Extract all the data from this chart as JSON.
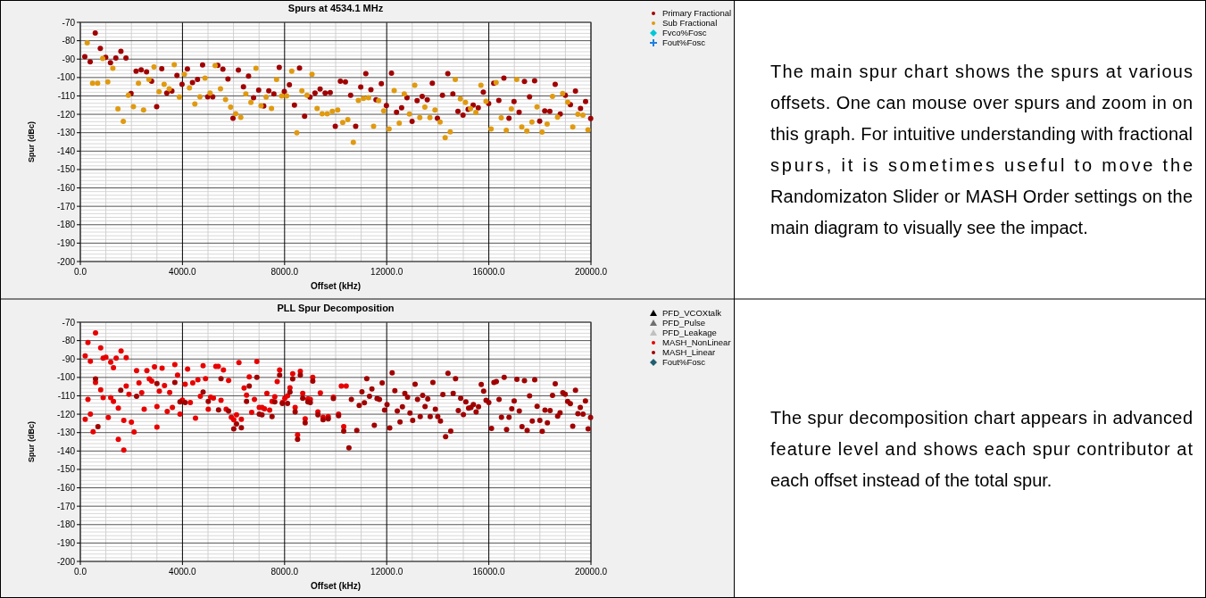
{
  "chart_data": [
    {
      "type": "scatter",
      "title": "Spurs at 4534.1 MHz",
      "xlabel": "Offset (kHz)",
      "ylabel": "Spur (dBc)",
      "xlim": [
        0,
        20000
      ],
      "ylim": [
        -200,
        -70
      ],
      "xticks": [
        {
          "value": 0,
          "label": "0.0"
        },
        {
          "value": 4000,
          "label": "4000.0"
        },
        {
          "value": 8000,
          "label": "8000.0"
        },
        {
          "value": 12000,
          "label": "12000.0"
        },
        {
          "value": 16000,
          "label": "16000.0"
        },
        {
          "value": 20000,
          "label": "20000.0"
        }
      ],
      "yticks": [
        -70,
        -80,
        -90,
        -100,
        -110,
        -120,
        -130,
        -140,
        -150,
        -160,
        -170,
        -180,
        -190,
        -200
      ],
      "grid": true,
      "legend": "right",
      "series": [
        {
          "name": "Primary Fractional",
          "color": "#a00000",
          "marker": "circle",
          "x": [
            175,
            385,
            584,
            783,
            993,
            1180,
            1390,
            1589,
            1787,
            1986,
            2184,
            2383,
            2593,
            2792,
            2990,
            3189,
            3387,
            3586,
            3784,
            3983,
            4193,
            4392,
            4590,
            4789,
            4988,
            5186,
            5385,
            5583,
            5782,
            5980,
            6190,
            6389,
            6588,
            6786,
            6985,
            7183,
            7382,
            7581,
            7791,
            7989,
            8188,
            8386,
            8585,
            8784,
            8994,
            9192,
            9391,
            9589,
            9788,
            9986,
            10185,
            10383,
            10587,
            10785,
            10984,
            11182,
            11381,
            11580,
            11790,
            11988,
            12187,
            12385,
            12584,
            12794,
            12993,
            13191,
            13390,
            13589,
            13787,
            13986,
            14184,
            14394,
            14593,
            14791,
            14990,
            15189,
            15387,
            15586,
            15784,
            15994,
            16193,
            16392,
            16590,
            16789,
            16987,
            17186,
            17396,
            17595,
            17793,
            17992,
            18190,
            18389,
            18599,
            18797,
            18996,
            19195,
            19393,
            19592,
            19790,
            19989
          ],
          "values": [
            -88.7,
            -91.5,
            -75.8,
            -84.2,
            -89,
            -92,
            -89.4,
            -85.8,
            -89.4,
            -108.7,
            -96.6,
            -95.8,
            -96.9,
            -102,
            -115.8,
            -95.2,
            -108.4,
            -107.4,
            -98.9,
            -103.7,
            -95.3,
            -102.7,
            -101,
            -93.2,
            -110.5,
            -110.5,
            -93.4,
            -95.5,
            -100.8,
            -122.1,
            -96,
            -105,
            -99.2,
            -111,
            -106.9,
            -115.5,
            -107.2,
            -108.9,
            -94.5,
            -107.6,
            -104,
            -115,
            -94.8,
            -121,
            -110.6,
            -108.5,
            -106.3,
            -108.4,
            -108.2,
            -126.5,
            -102,
            -102.4,
            -109.7,
            -126.5,
            -105.2,
            -97.9,
            -106.6,
            -112.1,
            -103.4,
            -115.2,
            -97.6,
            -118.9,
            -116.5,
            -111,
            -123.9,
            -112.6,
            -110.3,
            -112.1,
            -103.1,
            -122.1,
            -109.7,
            -97.9,
            -108.9,
            -118.4,
            -120.5,
            -117.3,
            -115,
            -116.5,
            -107.9,
            -114.2,
            -103.1,
            -112.4,
            -100.3,
            -122.1,
            -113.1,
            -118.9,
            -102.1,
            -110.5,
            -101.8,
            -123.7,
            -118.1,
            -118.4,
            -103.7,
            -119.8,
            -109.7,
            -114.8,
            -107.4,
            -116.8,
            -113.1,
            -122.3
          ]
        },
        {
          "name": "Sub Fractional",
          "color": "#e09a10",
          "marker": "circle",
          "x": [
            269,
            479,
            677,
            876,
            1075,
            1273,
            1472,
            1682,
            1880,
            2079,
            2277,
            2476,
            2686,
            2885,
            3083,
            3282,
            3481,
            3679,
            3878,
            4076,
            4275,
            4485,
            4684,
            4882,
            5081,
            5280,
            5490,
            5688,
            5887,
            6085,
            6284,
            6482,
            6681,
            6880,
            7078,
            7277,
            7487,
            7685,
            7884,
            8082,
            8281,
            8480,
            8678,
            8877,
            9075,
            9274,
            9472,
            9671,
            9870,
            10080,
            10278,
            10477,
            10692,
            10890,
            11089,
            11288,
            11486,
            11685,
            11883,
            12093,
            12292,
            12491,
            12689,
            12888,
            13098,
            13296,
            13495,
            13693,
            13892,
            14091,
            14289,
            14488,
            14686,
            14885,
            15084,
            15282,
            15492,
            15691,
            15889,
            16088,
            16286,
            16485,
            16684,
            16882,
            17092,
            17291,
            17489,
            17688,
            17887,
            18085,
            18284,
            18494,
            18692,
            18891,
            19090,
            19288,
            19487,
            19685,
            19884
          ],
          "values": [
            -81.1,
            -103.1,
            -103.1,
            -89.7,
            -102.4,
            -95,
            -117,
            -123.9,
            -109.6,
            -115.8,
            -103.1,
            -117.7,
            -101.1,
            -94.3,
            -107.7,
            -103.7,
            -106.1,
            -93.1,
            -110.6,
            -98.2,
            -105.6,
            -114.4,
            -110.5,
            -100.3,
            -108.4,
            -93.5,
            -106.1,
            -111.9,
            -116.1,
            -119.7,
            -121.6,
            -108.9,
            -113.5,
            -95,
            -115.3,
            -110.6,
            -116.8,
            -101.1,
            -110,
            -110,
            -96.5,
            -130,
            -107.2,
            -109.7,
            -98.2,
            -116.8,
            -119.7,
            -119.7,
            -118.4,
            -117.6,
            -124.5,
            -122.9,
            -135.3,
            -112.4,
            -111.3,
            -111,
            -126.5,
            -112.6,
            -118.2,
            -128,
            -107.1,
            -124.8,
            -108.9,
            -119.8,
            -104.2,
            -121.8,
            -116.1,
            -121.8,
            -117.7,
            -124.2,
            -132.7,
            -129.5,
            -101,
            -111.6,
            -113.5,
            -116.9,
            -119,
            -104.2,
            -112.9,
            -128,
            -102.7,
            -121.9,
            -128.7,
            -117.1,
            -101.1,
            -126.9,
            -129,
            -124.2,
            -116,
            -129.7,
            -125.3,
            -110.3,
            -121.5,
            -108.7,
            -113.4,
            -126.9,
            -120,
            -120.5,
            -128.4
          ]
        },
        {
          "name": "Fvco%Fosc",
          "color": "#00c8d8",
          "marker": "diamond"
        },
        {
          "name": "Fout%Fosc",
          "color": "#1e80e0",
          "marker": "cross"
        }
      ]
    },
    {
      "type": "other",
      "annotations": [
        "The main spur chart shows the spurs at various offsets.  One can mouse over spurs and zoom in on this graph.  For intuitive understanding with fractional spurs, it is sometimes useful to move the Randomizaton Slider or MASH Order settings on the main diagram to visually see the impact."
      ]
    },
    {
      "type": "scatter",
      "title": "PLL Spur Decomposition",
      "xlabel": "Offset (kHz)",
      "ylabel": "Spur (dBc)",
      "xlim": [
        0,
        20000
      ],
      "ylim": [
        -200,
        -70
      ],
      "xticks": [
        {
          "value": 0,
          "label": "0.0"
        },
        {
          "value": 4000,
          "label": "4000.0"
        },
        {
          "value": 8000,
          "label": "8000.0"
        },
        {
          "value": 12000,
          "label": "12000.0"
        },
        {
          "value": 16000,
          "label": "16000.0"
        },
        {
          "value": 20000,
          "label": "20000.0"
        }
      ],
      "yticks": [
        -70,
        -80,
        -90,
        -100,
        -110,
        -120,
        -130,
        -140,
        -150,
        -160,
        -170,
        -180,
        -190,
        -200
      ],
      "grid": true,
      "legend": "right",
      "series": [
        {
          "name": "PFD_VCOXtalk",
          "color": "#000000",
          "marker": "triangle"
        },
        {
          "name": "PFD_Pulse",
          "color": "#707070",
          "marker": "triangle"
        },
        {
          "name": "PFD_Leakage",
          "color": "#c0c0c0",
          "marker": "triangle"
        },
        {
          "name": "MASH_NonLinear",
          "color": "#e80000",
          "marker": "circle",
          "x": [
            190,
            298,
            393,
            595,
            797,
            893,
            1000,
            1190,
            1297,
            1404,
            1595,
            1797,
            190,
            298,
            393,
            500,
            595,
            797,
            893,
            1095,
            1190,
            1297,
            1488,
            1488,
            1702,
            1702,
            1797,
            1904,
            2000,
            2106,
            2202,
            2297,
            2404,
            2500,
            2606,
            2701,
            2797,
            2904,
            3000,
            3000,
            3094,
            3201,
            3296,
            3403,
            3499,
            3606,
            3701,
            3808,
            3903,
            3998,
            4106,
            4201,
            4308,
            4403,
            4510,
            4605,
            4701,
            4808,
            4903,
            5010,
            5105,
            5212,
            5307,
            5403,
            5510,
            5605,
            5712,
            5807,
            5914,
            6010,
            6117,
            6212,
            6307,
            6414,
            6509,
            6616,
            6712,
            6819,
            6914,
            7009,
            7116,
            7211,
            7307,
            7414,
            7509,
            7616,
            7711,
            7806,
            7914,
            8009,
            8116,
            8211,
            8318,
            8413,
            8509,
            8616,
            8711,
            8806,
            8913,
            9008,
            9104,
            9306,
            9401,
            9508,
            9710,
            9913,
            10115,
            10222,
            10317,
            10413
          ],
          "values": [
            -88.3,
            -81,
            -91.2,
            -75.8,
            -84,
            -89.5,
            -89,
            -91.7,
            -94.7,
            -89.5,
            -85.7,
            -89.3,
            -122.8,
            -112,
            -120,
            -129.5,
            -102.8,
            -106.7,
            -111,
            -121.8,
            -111,
            -113,
            -133.7,
            -116.7,
            -139.5,
            -123.3,
            -104.7,
            -109.2,
            -124.3,
            -129.7,
            -96.3,
            -103,
            -108.3,
            -117.3,
            -96.3,
            -100.8,
            -102,
            -94.3,
            -115.8,
            -127,
            -107.5,
            -95,
            -104.5,
            -118.5,
            -108.2,
            -116.3,
            -93,
            -98.8,
            -120,
            -112.3,
            -103.7,
            -95.5,
            -113.7,
            -103,
            -122.2,
            -101.3,
            -110.3,
            -93.7,
            -100.7,
            -117.3,
            -110.8,
            -111.2,
            -94,
            -94,
            -112.5,
            -96,
            -117.3,
            -101.7,
            -121.7,
            -123,
            -120.3,
            -92,
            -122.7,
            -105.8,
            -109.7,
            -99.7,
            -119,
            -112,
            -91.3,
            -116.3,
            -116.3,
            -117,
            -108.7,
            -117.8,
            -113,
            -110.5,
            -102.2,
            -96,
            -113.7,
            -111.3,
            -110,
            -105.7,
            -98,
            -116.3,
            -131.3,
            -96.7,
            -108.7,
            -122.5,
            -111.7,
            -112,
            -100,
            -118.7,
            -108.5,
            -121.7,
            -121.3,
            -110.7,
            -120,
            -104.7,
            -126.7,
            -104.7
          ]
        },
        {
          "name": "MASH_Linear",
          "color": "#a00000",
          "marker": "circle",
          "x": [
            595,
            690,
            1583,
            2202,
            3000,
            3701,
            3903,
            4106,
            4808,
            5010,
            5414,
            5510,
            5807,
            6010,
            6117,
            6307,
            6509,
            6616,
            6914,
            7009,
            7116,
            7509,
            7616,
            7806,
            7914,
            8116,
            8211,
            8318,
            8413,
            8509,
            8616,
            8711,
            8806,
            8913,
            9008,
            9104,
            9306,
            9508,
            9710,
            9913,
            10115,
            10317,
            10521,
            10616,
            10829,
            10923,
            11030,
            11125,
            11219,
            11326,
            11420,
            11515,
            11621,
            11716,
            11823,
            11917,
            12012,
            12118,
            12213,
            12319,
            12414,
            12521,
            12615,
            12710,
            12816,
            12911,
            13017,
            13112,
            13207,
            13313,
            13408,
            13502,
            13609,
            13704,
            13810,
            13905,
            14000,
            14106,
            14201,
            14307,
            14401,
            14508,
            14603,
            14697,
            14804,
            14898,
            15005,
            15100,
            15207,
            15301,
            15395,
            15502,
            15596,
            15703,
            15797,
            15892,
            15999,
            16105,
            16200,
            16294,
            16401,
            16495,
            16602,
            16696,
            16791,
            16898,
            16992,
            17099,
            17193,
            17300,
            17395,
            17501,
            17596,
            17702,
            17797,
            17891,
            17998,
            18092,
            18199,
            18294,
            18400,
            18495,
            18601,
            18696,
            18790,
            18897,
            18991,
            19086,
            19193,
            19287,
            19394,
            19488,
            19583,
            19690,
            19784,
            19891,
            19985
          ],
          "values": [
            -100.8,
            -126.7,
            -107,
            -110.3,
            -103.3,
            -102.7,
            -113.3,
            -113.7,
            -108,
            -113,
            -117.7,
            -100.7,
            -118.3,
            -128,
            -125.3,
            -127.3,
            -113,
            -104.7,
            -100,
            -120,
            -120.3,
            -121.3,
            -113.3,
            -98.7,
            -114.2,
            -114.2,
            -108,
            -100.8,
            -118.7,
            -133.7,
            -98.7,
            -111.3,
            -124.7,
            -113.3,
            -113.7,
            -102,
            -120.3,
            -123,
            -122.5,
            -111.5,
            -120.8,
            -129.2,
            -138.3,
            -112,
            -128.8,
            -115.2,
            -107.8,
            -113.8,
            -100.7,
            -110.3,
            -106.2,
            -126,
            -111.5,
            -112,
            -103,
            -117.8,
            -114.8,
            -127.5,
            -97.5,
            -107.2,
            -118.3,
            -124.2,
            -116,
            -108.7,
            -110.7,
            -119.3,
            -123.3,
            -103.7,
            -112,
            -121.3,
            -109.8,
            -115.8,
            -111.7,
            -121.3,
            -102.7,
            -117.3,
            -121.3,
            -123.7,
            -109.3,
            -132.2,
            -97.8,
            -129.2,
            -108.7,
            -100.7,
            -118,
            -111.3,
            -120.2,
            -113.3,
            -116.7,
            -116.3,
            -114.7,
            -118.7,
            -116,
            -103.8,
            -107.5,
            -112.5,
            -113.7,
            -127.7,
            -102.7,
            -102.3,
            -112,
            -121.7,
            -100,
            -128.3,
            -121.7,
            -117,
            -112.8,
            -101,
            -118.3,
            -126.8,
            -101.8,
            -128.8,
            -110,
            -123.7,
            -101.3,
            -115.7,
            -123.3,
            -129.3,
            -117.8,
            -124.7,
            -118,
            -109.8,
            -103.5,
            -121,
            -119.2,
            -108.3,
            -109.2,
            -113,
            -114.3,
            -126.5,
            -107,
            -119.7,
            -116.3,
            -120,
            -112.8,
            -128,
            -121.8
          ]
        },
        {
          "name": "Fout%Fosc",
          "color": "#1f5f70",
          "marker": "diamond"
        }
      ]
    },
    {
      "type": "other",
      "annotations": [
        "The spur decomposition chart appears in advanced feature level and shows each spur contributor at each offset instead of the total spur."
      ]
    }
  ]
}
